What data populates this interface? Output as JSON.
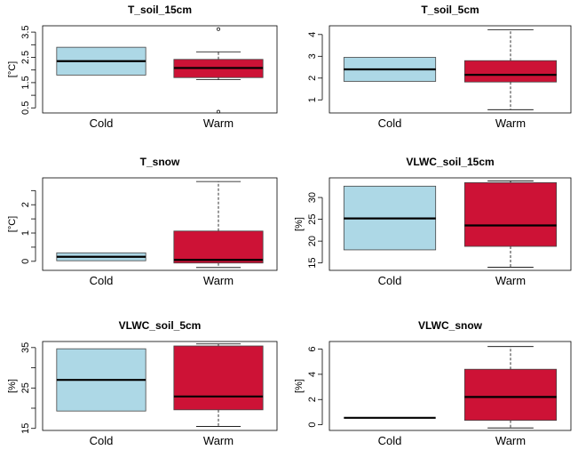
{
  "chart_data": [
    {
      "type": "boxplot",
      "title": "T_soil_15cm",
      "ylabel": "[°C]",
      "categories": [
        "Cold",
        "Warm"
      ],
      "ylim": [
        0.3,
        3.75
      ],
      "yticks": [
        0.5,
        1.5,
        2.5,
        3.5
      ],
      "extra_ticks": [
        1.0,
        2.0,
        3.0
      ],
      "colors": [
        "#add8e6",
        "#cd1236"
      ],
      "boxes": [
        {
          "min": 1.8,
          "q1": 1.8,
          "median": 2.35,
          "q3": 2.9,
          "max": 2.9,
          "outliers": []
        },
        {
          "min": 1.62,
          "q1": 1.7,
          "median": 2.08,
          "q3": 2.42,
          "max": 2.72,
          "outliers": [
            3.62,
            0.35
          ]
        }
      ]
    },
    {
      "type": "boxplot",
      "title": "T_soil_5cm",
      "ylabel": "",
      "categories": [
        "Cold",
        "Warm"
      ],
      "ylim": [
        0.4,
        4.4
      ],
      "yticks": [
        1,
        2,
        3,
        4
      ],
      "extra_ticks": [],
      "colors": [
        "#add8e6",
        "#cd1236"
      ],
      "boxes": [
        {
          "min": 1.85,
          "q1": 1.85,
          "median": 2.4,
          "q3": 2.95,
          "max": 2.95,
          "outliers": []
        },
        {
          "min": 0.55,
          "q1": 1.82,
          "median": 2.15,
          "q3": 2.8,
          "max": 4.22,
          "outliers": []
        }
      ]
    },
    {
      "type": "boxplot",
      "title": "T_snow",
      "ylabel": "[°C]",
      "categories": [
        "Cold",
        "Warm"
      ],
      "ylim": [
        -0.32,
        2.95
      ],
      "yticks": [
        0.0,
        1.0,
        2.0
      ],
      "extra_ticks": [
        0.5,
        1.5,
        2.5
      ],
      "colors": [
        "#add8e6",
        "#cd1236"
      ],
      "boxes": [
        {
          "min": 0.02,
          "q1": 0.02,
          "median": 0.16,
          "q3": 0.3,
          "max": 0.3,
          "outliers": []
        },
        {
          "min": -0.22,
          "q1": -0.06,
          "median": 0.05,
          "q3": 1.07,
          "max": 2.82,
          "outliers": []
        }
      ]
    },
    {
      "type": "boxplot",
      "title": "VLWC_soil_15cm",
      "ylabel": "[%]",
      "categories": [
        "Cold",
        "Warm"
      ],
      "ylim": [
        13.3,
        34.5
      ],
      "yticks": [
        15,
        20,
        25,
        30
      ],
      "extra_ticks": [],
      "colors": [
        "#add8e6",
        "#cd1236"
      ],
      "boxes": [
        {
          "min": 18.0,
          "q1": 18.0,
          "median": 25.2,
          "q3": 32.6,
          "max": 32.6,
          "outliers": []
        },
        {
          "min": 14.0,
          "q1": 18.8,
          "median": 23.6,
          "q3": 33.4,
          "max": 33.8,
          "outliers": []
        }
      ]
    },
    {
      "type": "boxplot",
      "title": "VLWC_soil_5cm",
      "ylabel": "[%]",
      "categories": [
        "Cold",
        "Warm"
      ],
      "ylim": [
        14.5,
        36.5
      ],
      "yticks": [
        15,
        25,
        35
      ],
      "extra_ticks": [
        20,
        30
      ],
      "colors": [
        "#add8e6",
        "#cd1236"
      ],
      "boxes": [
        {
          "min": 19.3,
          "q1": 19.3,
          "median": 27.0,
          "q3": 34.7,
          "max": 34.7,
          "outliers": []
        },
        {
          "min": 15.5,
          "q1": 19.6,
          "median": 22.9,
          "q3": 35.4,
          "max": 35.9,
          "outliers": []
        }
      ]
    },
    {
      "type": "boxplot",
      "title": "VLWC_snow",
      "ylabel": "[%]",
      "categories": [
        "Cold",
        "Warm"
      ],
      "ylim": [
        -0.45,
        6.6
      ],
      "yticks": [
        0,
        2,
        4,
        6
      ],
      "extra_ticks": [],
      "colors": [
        "#add8e6",
        "#cd1236"
      ],
      "boxes": [
        {
          "min": 0.55,
          "q1": 0.55,
          "median": 0.55,
          "q3": 0.55,
          "max": 0.55,
          "outliers": []
        },
        {
          "min": -0.25,
          "q1": 0.35,
          "median": 2.2,
          "q3": 4.4,
          "max": 6.2,
          "outliers": []
        }
      ]
    }
  ]
}
